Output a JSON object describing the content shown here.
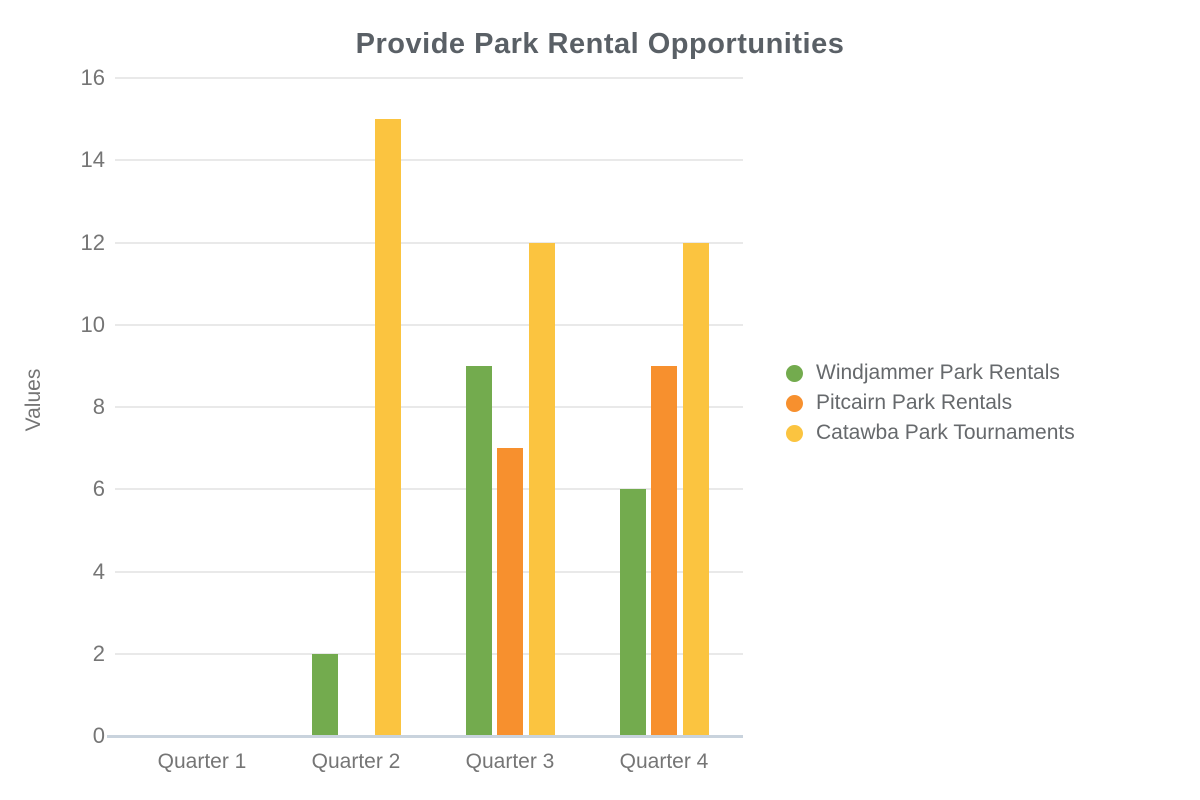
{
  "chart_data": {
    "type": "bar",
    "title": "Provide Park Rental Opportunities",
    "categories": [
      "Quarter 1",
      "Quarter 2",
      "Quarter 3",
      "Quarter 4"
    ],
    "series": [
      {
        "name": "Windjammer Park Rentals",
        "color": "#73AB4E",
        "values": [
          0,
          2,
          9,
          6
        ]
      },
      {
        "name": "Pitcairn Park Rentals",
        "color": "#F7902E",
        "values": [
          0,
          0,
          7,
          9
        ]
      },
      {
        "name": "Catawba Park Tournaments",
        "color": "#FBC440",
        "values": [
          0,
          15,
          12,
          12
        ]
      }
    ],
    "xlabel": "",
    "ylabel": "Values",
    "ylim": [
      0,
      16
    ],
    "ytick_step": 2,
    "yticks": [
      0,
      2,
      4,
      6,
      8,
      10,
      12,
      14,
      16
    ],
    "grid": true,
    "legend_position": "right",
    "legend_marker": "circle"
  },
  "colors": {
    "title_text": "#5A6066",
    "axis_text": "#757575",
    "legend_text": "#66696C",
    "gridline": "#E9E9E9",
    "baseline": "#C9D3DD",
    "background": "#FFFFFF"
  }
}
